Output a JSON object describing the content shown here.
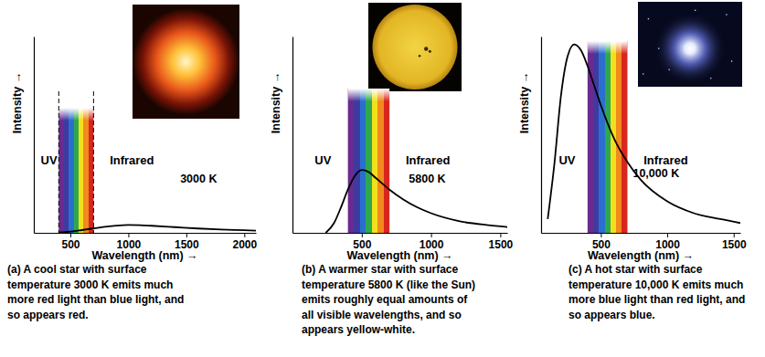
{
  "chart_data": [
    {
      "type": "line",
      "x_label": "Wavelength (nm) →",
      "y_label": "Intensity →",
      "annotations": [
        "UV",
        "Infrared"
      ],
      "x": [
        400,
        500,
        600,
        700,
        800,
        900,
        1000,
        1100,
        1200,
        1400,
        1600,
        1800,
        2000,
        2100
      ],
      "series": [
        {
          "name": "3000 K",
          "color": "#000000",
          "values": [
            0.2,
            0.6,
            1.4,
            2.3,
            3.1,
            3.7,
            4.0,
            3.9,
            3.6,
            2.9,
            2.2,
            1.7,
            1.3,
            1.1
          ]
        }
      ],
      "visible_range": [
        400,
        700
      ],
      "xlim": [
        185,
        2100
      ],
      "xticks": [
        500,
        1000,
        1500,
        2000
      ],
      "ylim": [
        0,
        100
      ],
      "tick_labels": "x",
      "caption": [
        "(a) A cool star with surface",
        "temperature 3000 K emits much",
        "more red light than blue light, and",
        "so appears red."
      ]
    },
    {
      "type": "line",
      "x_label": "Wavelength (nm) →",
      "y_label": "Intensity →",
      "annotations": [
        "UV",
        "Infrared"
      ],
      "x": [
        240,
        300,
        350,
        400,
        450,
        500,
        550,
        600,
        700,
        800,
        900,
        1000,
        1200,
        1400,
        1550
      ],
      "series": [
        {
          "name": "5800 K",
          "color": "#000000",
          "values": [
            0,
            5,
            13,
            22,
            29,
            32,
            31,
            28,
            22,
            17,
            13,
            10,
            6,
            4,
            3
          ]
        }
      ],
      "visible_range": [
        400,
        700
      ],
      "xlim": [
        0,
        1550
      ],
      "xticks": [
        500,
        1000,
        1500
      ],
      "ylim": [
        0,
        100
      ],
      "tick_labels": "x",
      "caption": [
        "(b) A warmer star with surface",
        "temperature 5800 K (like the Sun)",
        "emits roughly equal amounts of",
        "all visible wavelengths, and so",
        "appears yellow-white."
      ]
    },
    {
      "type": "line",
      "x_label": "Wavelength (nm) →",
      "y_label": "Intensity →",
      "annotations": [
        "UV",
        "Infrared"
      ],
      "x": [
        100,
        150,
        200,
        250,
        300,
        350,
        400,
        450,
        500,
        600,
        700,
        800,
        1000,
        1200,
        1400,
        1550
      ],
      "series": [
        {
          "name": "10,000 K",
          "color": "#000000",
          "values": [
            7,
            35,
            70,
            90,
            96,
            93,
            85,
            75,
            65,
            48,
            36,
            27,
            16,
            10,
            7,
            5
          ]
        }
      ],
      "visible_range": [
        400,
        700
      ],
      "xlim": [
        50,
        1550
      ],
      "xticks": [
        500,
        1000,
        1500
      ],
      "ylim": [
        0,
        100
      ],
      "tick_labels": "x",
      "caption": [
        "(c) A hot star with surface",
        "temperature 10,000 K emits much",
        "more blue light than red light, and",
        "so appears blue."
      ]
    }
  ]
}
